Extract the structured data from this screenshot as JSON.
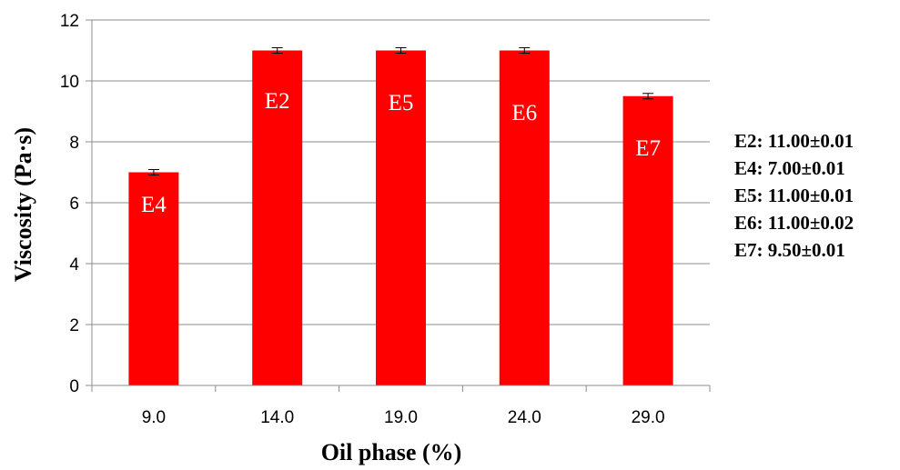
{
  "chart_data": {
    "type": "bar",
    "title": "",
    "xlabel": "Oil phase (%)",
    "ylabel": "Viscosity (Pa·s)",
    "categories": [
      "9.0",
      "14.0",
      "19.0",
      "24.0",
      "29.0"
    ],
    "values": [
      7.0,
      11.0,
      11.0,
      11.0,
      9.5
    ],
    "errors": [
      0.01,
      0.01,
      0.01,
      0.02,
      0.01
    ],
    "bar_labels": [
      "E4",
      "E2",
      "E5",
      "E6",
      "E7"
    ],
    "ylim": [
      0,
      12
    ],
    "yticks": [
      0,
      2,
      4,
      6,
      8,
      10,
      12
    ],
    "grid": true,
    "bar_color": "#ff0000",
    "legend_position": "right",
    "legend_lines": [
      "E2: 11.00±0.01",
      "E4: 7.00±0.01",
      "E5: 11.00±0.01",
      "E6: 11.00±0.02",
      "E7: 9.50±0.01"
    ]
  }
}
